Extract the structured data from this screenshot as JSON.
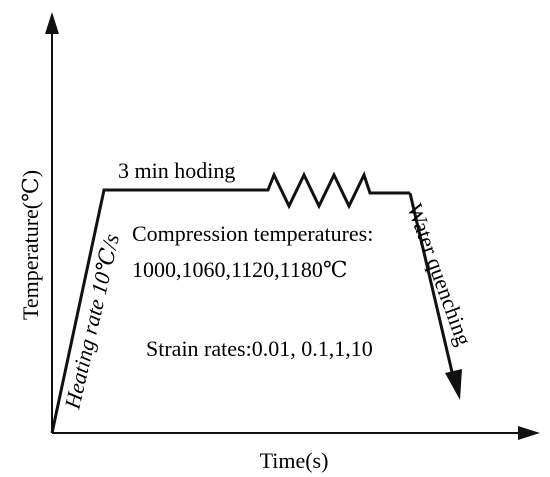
{
  "axes": {
    "y_label": "Temperature(℃)",
    "x_label": "Time(s)"
  },
  "labels": {
    "holding": "3 min hoding",
    "heating": "Heating rate 10℃/s",
    "quenching": "Water quenching",
    "compression_title": "Compression temperatures:",
    "compression_values": "1000,1060,1120,1180℃",
    "strain_rates": "Strain rates:0.01, 0.1,1,10"
  },
  "colors": {
    "line": "#111111",
    "text": "#000000",
    "background": "#ffffff"
  }
}
